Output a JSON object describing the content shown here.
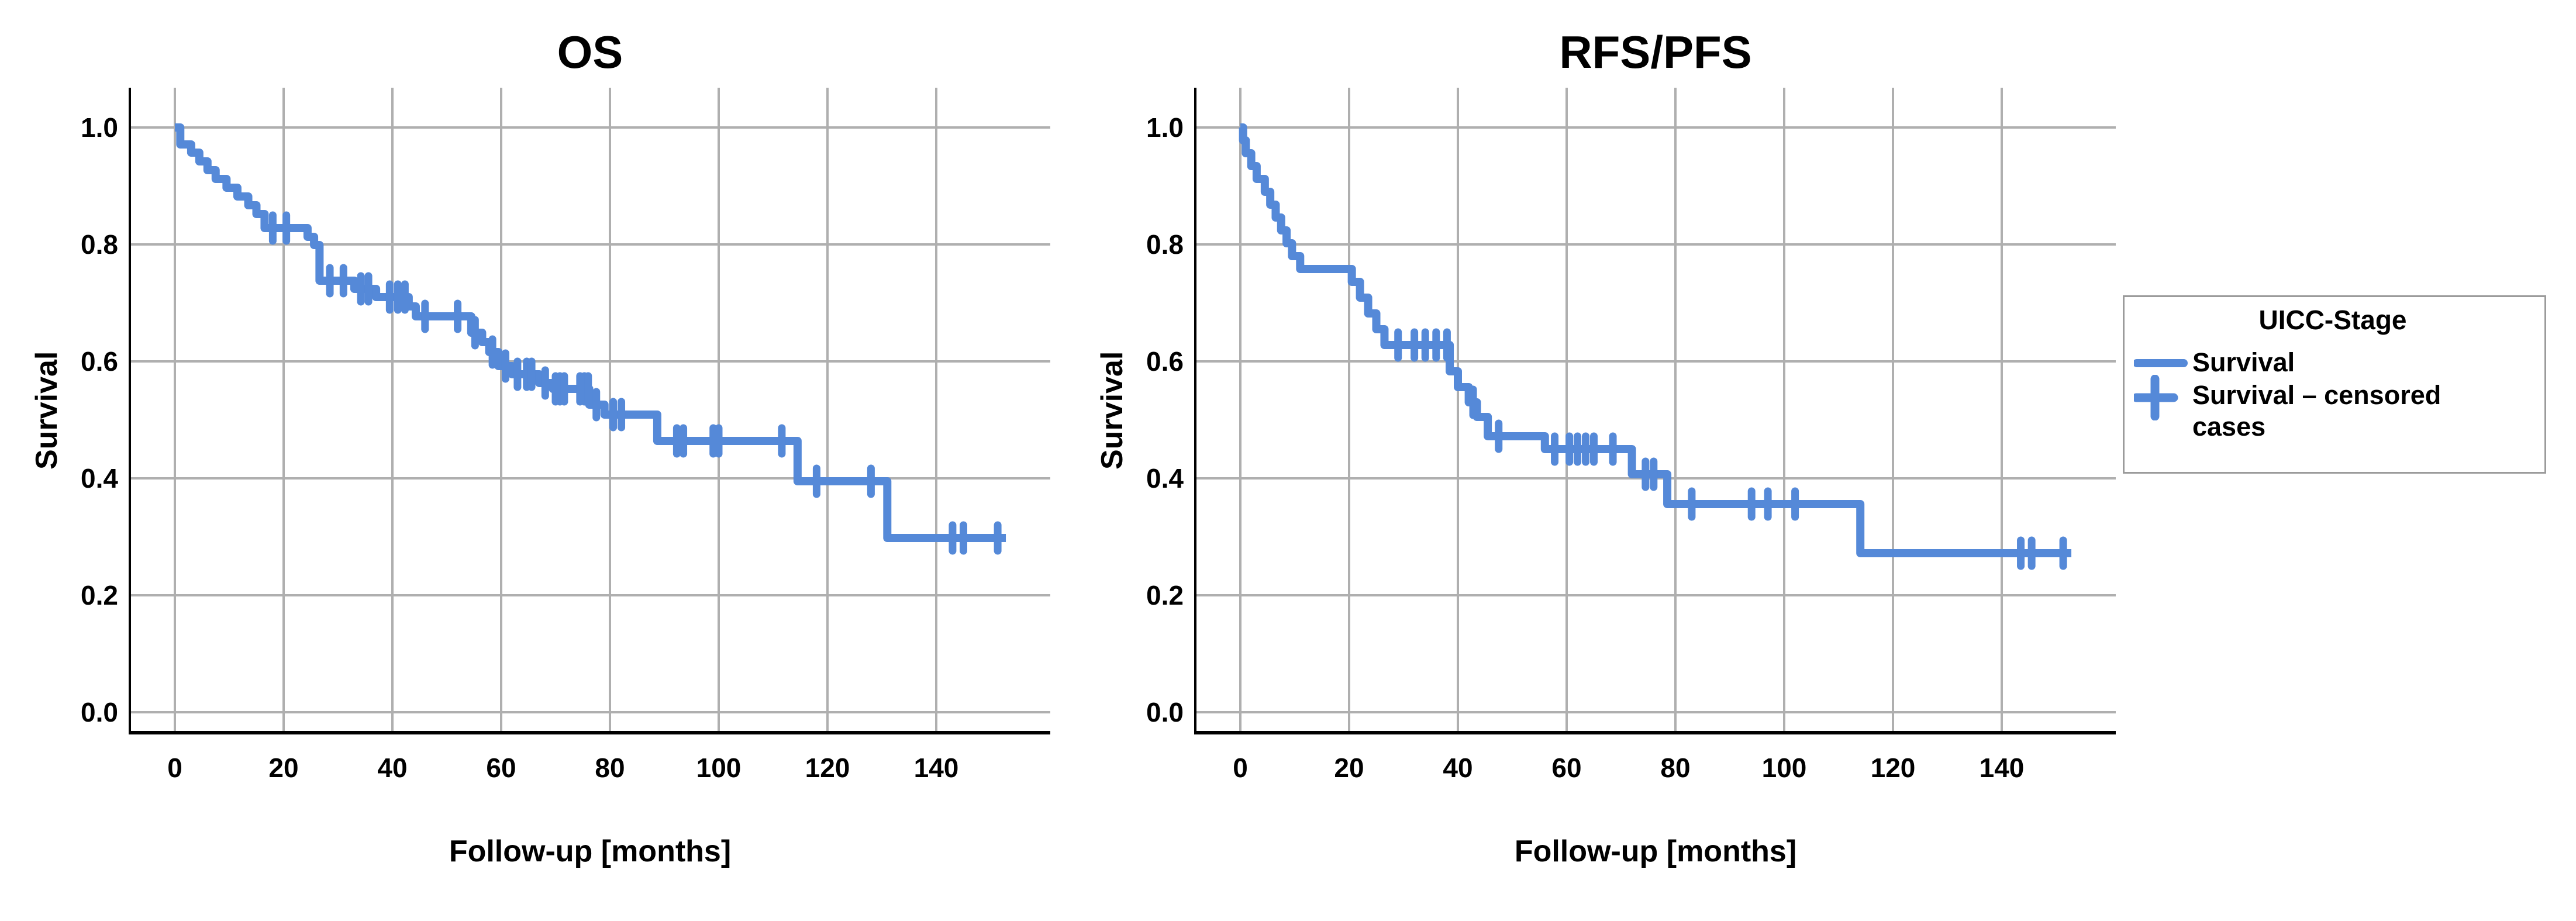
{
  "legend": {
    "title": "UICC-Stage",
    "items": [
      {
        "marker": "line",
        "label": "Survival"
      },
      {
        "marker": "plus",
        "label": "Survival – censored cases"
      }
    ],
    "border_color": "#9b9b9b"
  },
  "colors": {
    "curve": "#5589D8",
    "grid": "#AFAFAF",
    "axis": "#000000",
    "background": "#ffffff"
  },
  "chart_data": [
    {
      "type": "line",
      "subtype": "kaplan-meier-step",
      "title": "OS",
      "xlabel": "Follow-up [months]",
      "ylabel": "Survival",
      "xticks": [
        0,
        20,
        40,
        60,
        80,
        100,
        120,
        140
      ],
      "yticks": [
        "0.0",
        "0.2",
        "0.4",
        "0.6",
        "0.8",
        "1.0"
      ],
      "xlim": [
        -8.5,
        161
      ],
      "ylim": [
        -0.035,
        1.068
      ],
      "grid": true,
      "legend_position": "right-outside",
      "series": [
        {
          "name": "Survival",
          "color": "#5589D8",
          "end": 152.8,
          "steps": [
            [
              0,
              1.0
            ],
            [
              1,
              0.971
            ],
            [
              3,
              0.957
            ],
            [
              4.5,
              0.942
            ],
            [
              6,
              0.927
            ],
            [
              7.5,
              0.912
            ],
            [
              9.5,
              0.897
            ],
            [
              11.5,
              0.882
            ],
            [
              13.5,
              0.867
            ],
            [
              15,
              0.852
            ],
            [
              16.5,
              0.828
            ],
            [
              24.4,
              0.813
            ],
            [
              25.6,
              0.799
            ],
            [
              26.6,
              0.738
            ],
            [
              33,
              0.724
            ],
            [
              37,
              0.71
            ],
            [
              43,
              0.694
            ],
            [
              44.3,
              0.677
            ],
            [
              54.5,
              0.649
            ],
            [
              56.5,
              0.633
            ],
            [
              57.8,
              0.616
            ],
            [
              59.5,
              0.592
            ],
            [
              62,
              0.578
            ],
            [
              67,
              0.563
            ],
            [
              69.5,
              0.553
            ],
            [
              76.2,
              0.526
            ],
            [
              79,
              0.509
            ],
            [
              88.7,
              0.464
            ],
            [
              114.5,
              0.395
            ],
            [
              131,
              0.298
            ]
          ],
          "censors": [
            [
              18,
              0.828
            ],
            [
              20.5,
              0.828
            ],
            [
              28.5,
              0.738
            ],
            [
              31,
              0.738
            ],
            [
              34.2,
              0.724
            ],
            [
              35.6,
              0.724
            ],
            [
              39.5,
              0.71
            ],
            [
              41,
              0.71
            ],
            [
              42.3,
              0.71
            ],
            [
              46,
              0.677
            ],
            [
              52,
              0.677
            ],
            [
              55.2,
              0.649
            ],
            [
              58.4,
              0.616
            ],
            [
              60.8,
              0.592
            ],
            [
              63,
              0.578
            ],
            [
              64.7,
              0.578
            ],
            [
              65.6,
              0.578
            ],
            [
              68.1,
              0.563
            ],
            [
              70,
              0.553
            ],
            [
              70.8,
              0.553
            ],
            [
              71.6,
              0.553
            ],
            [
              74.5,
              0.553
            ],
            [
              75.3,
              0.553
            ],
            [
              76,
              0.553
            ],
            [
              77.5,
              0.526
            ],
            [
              80.6,
              0.509
            ],
            [
              82.1,
              0.509
            ],
            [
              92.3,
              0.464
            ],
            [
              93.5,
              0.464
            ],
            [
              99,
              0.464
            ],
            [
              100,
              0.464
            ],
            [
              111.6,
              0.464
            ],
            [
              118,
              0.395
            ],
            [
              128,
              0.395
            ],
            [
              143,
              0.298
            ],
            [
              145,
              0.298
            ],
            [
              151.3,
              0.298
            ]
          ]
        }
      ]
    },
    {
      "type": "line",
      "subtype": "kaplan-meier-step",
      "title": "RFS/PFS",
      "xlabel": "Follow-up [months]",
      "ylabel": "Survival",
      "xticks": [
        0,
        20,
        40,
        60,
        80,
        100,
        120,
        140
      ],
      "yticks": [
        "0.0",
        "0.2",
        "0.4",
        "0.6",
        "0.8",
        "1.0"
      ],
      "xlim": [
        -8.5,
        161
      ],
      "ylim": [
        -0.035,
        1.068
      ],
      "grid": true,
      "legend_position": "right-outside",
      "series": [
        {
          "name": "Survival",
          "color": "#5589D8",
          "end": 152.8,
          "steps": [
            [
              0,
              1.0
            ],
            [
              0.5,
              0.978
            ],
            [
              1,
              0.956
            ],
            [
              2,
              0.934
            ],
            [
              3,
              0.912
            ],
            [
              4.5,
              0.89
            ],
            [
              5.5,
              0.868
            ],
            [
              6.5,
              0.846
            ],
            [
              7.5,
              0.824
            ],
            [
              8.5,
              0.802
            ],
            [
              9.5,
              0.78
            ],
            [
              11,
              0.758
            ],
            [
              20.5,
              0.736
            ],
            [
              22,
              0.709
            ],
            [
              23.5,
              0.682
            ],
            [
              25,
              0.655
            ],
            [
              26.5,
              0.628
            ],
            [
              38.5,
              0.583
            ],
            [
              40,
              0.556
            ],
            [
              42,
              0.53
            ],
            [
              43.5,
              0.505
            ],
            [
              45.5,
              0.472
            ],
            [
              56,
              0.45
            ],
            [
              72,
              0.407
            ],
            [
              78.5,
              0.356
            ],
            [
              114,
              0.272
            ]
          ],
          "censors": [
            [
              29,
              0.628
            ],
            [
              32,
              0.628
            ],
            [
              34,
              0.628
            ],
            [
              36,
              0.628
            ],
            [
              38,
              0.628
            ],
            [
              42.8,
              0.53
            ],
            [
              47.5,
              0.472
            ],
            [
              57.8,
              0.45
            ],
            [
              60.5,
              0.45
            ],
            [
              62,
              0.45
            ],
            [
              63.5,
              0.45
            ],
            [
              65,
              0.45
            ],
            [
              68.5,
              0.45
            ],
            [
              74.5,
              0.407
            ],
            [
              76,
              0.407
            ],
            [
              83,
              0.356
            ],
            [
              94,
              0.356
            ],
            [
              97,
              0.356
            ],
            [
              102,
              0.356
            ],
            [
              143.5,
              0.272
            ],
            [
              145.5,
              0.272
            ],
            [
              151.3,
              0.272
            ]
          ]
        }
      ]
    }
  ]
}
